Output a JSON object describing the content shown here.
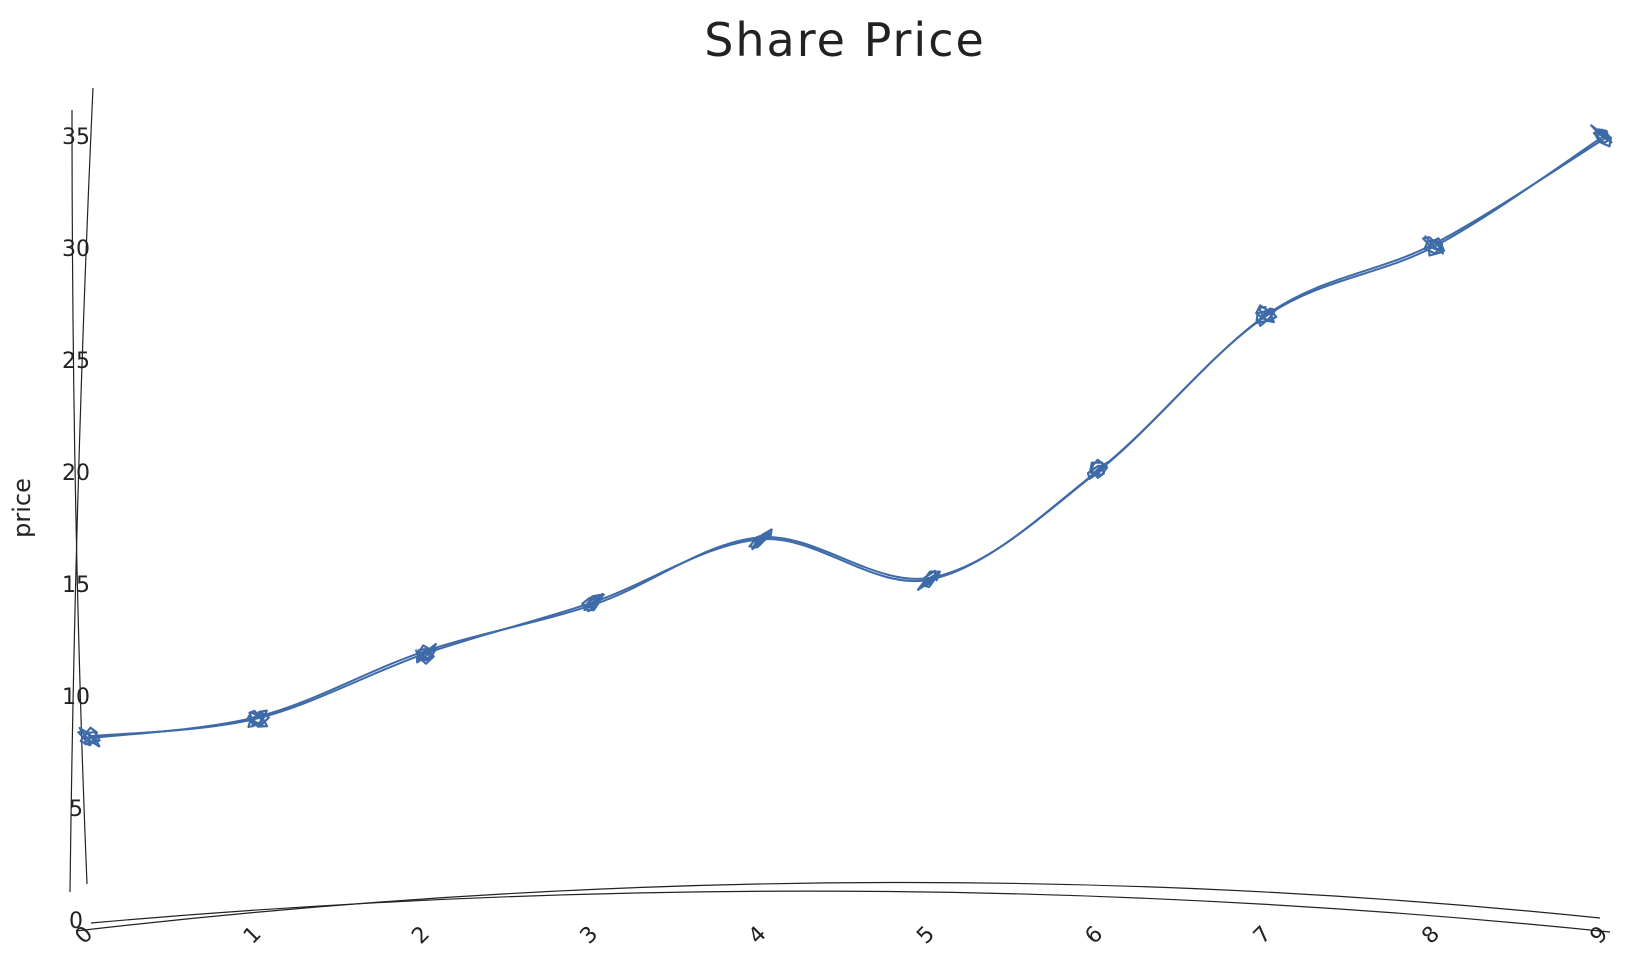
{
  "chart_data": {
    "type": "line",
    "title": "Share Price",
    "xlabel": "",
    "ylabel": "price",
    "x": [
      0,
      1,
      2,
      3,
      4,
      5,
      6,
      7,
      8,
      9
    ],
    "series": [
      {
        "values": [
          8.2,
          9.0,
          11.9,
          14.2,
          17.0,
          15.2,
          20.1,
          27.0,
          30.1,
          35.0
        ]
      }
    ],
    "xlim": [
      0,
      9
    ],
    "ylim": [
      0,
      35
    ],
    "xticks": [
      "0",
      "1",
      "2",
      "3",
      "4",
      "5",
      "6",
      "7",
      "8",
      "9"
    ],
    "yticks": [
      "0",
      "5",
      "10",
      "15",
      "20",
      "25",
      "30",
      "35"
    ],
    "grid": false,
    "legend": "none",
    "style": "hand-drawn",
    "colors": {
      "series": "#3f6aa8",
      "axis": "#222222",
      "text": "#222222"
    }
  }
}
